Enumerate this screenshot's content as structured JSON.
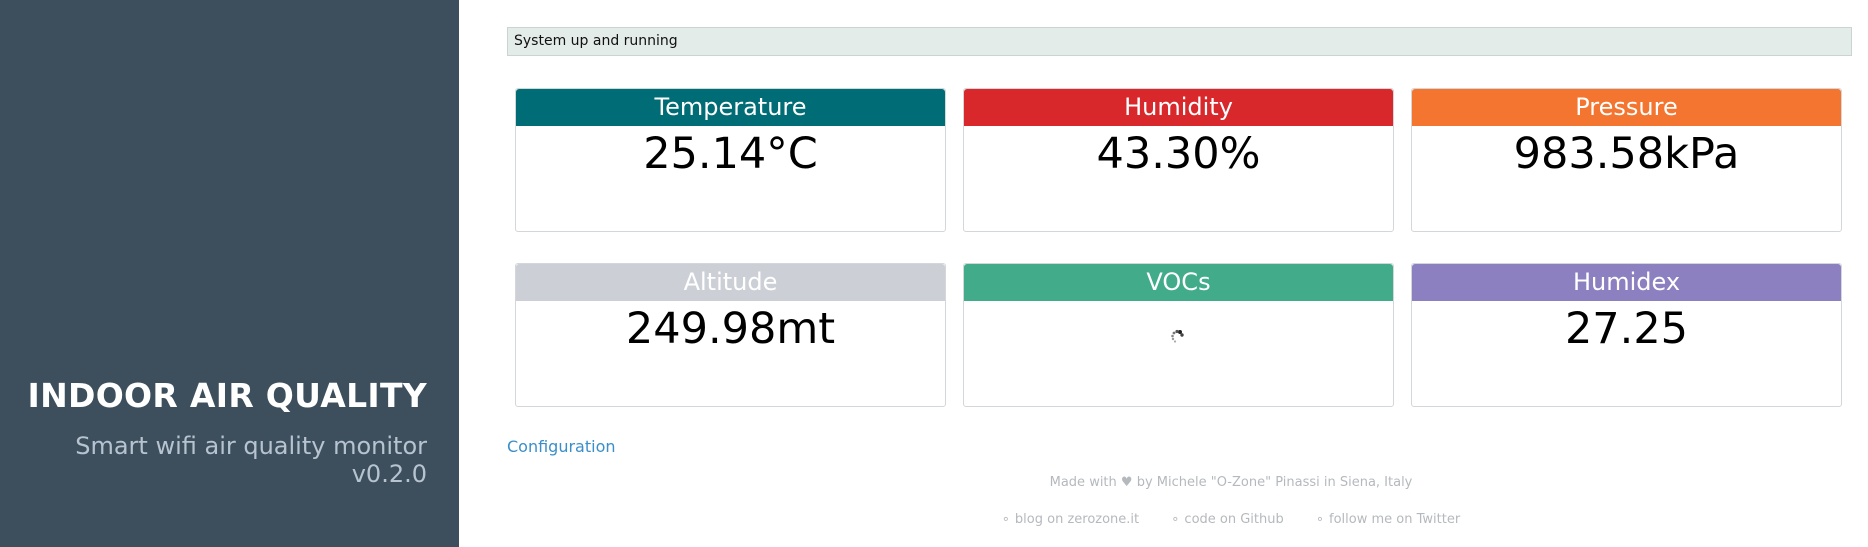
{
  "sidebar": {
    "title": "INDOOR AIR QUALITY",
    "subtitle": "Smart wifi air quality monitor",
    "version": "v0.2.0"
  },
  "status": {
    "message": "System up and running"
  },
  "cards": [
    {
      "label": "Temperature",
      "value": "25.14°C",
      "color": "#006c76"
    },
    {
      "label": "Humidity",
      "value": "43.30%",
      "color": "#d9282b"
    },
    {
      "label": "Pressure",
      "value": "983.58kPa",
      "color": "#f37530"
    },
    {
      "label": "Altitude",
      "value": "249.98mt",
      "color": "#ccd0d6"
    },
    {
      "label": "VOCs",
      "value": "",
      "color": "#42ab8a"
    },
    {
      "label": "Humidex",
      "value": "27.25",
      "color": "#8c80c0"
    }
  ],
  "links": {
    "configuration": "Configuration"
  },
  "footer": {
    "credit": "Made with ♥ by Michele \"O-Zone\" Pinassi in Siena, Italy",
    "bullet": "∘",
    "items": [
      "blog on zerozone.it",
      "code on Github",
      "follow me on Twitter"
    ]
  },
  "icons": {
    "vocs_loading": "loading-spinner-icon"
  }
}
